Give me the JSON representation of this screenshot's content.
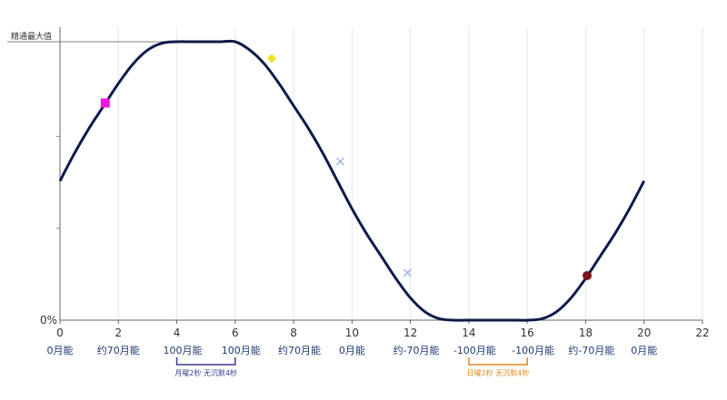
{
  "chart_data": {
    "type": "line",
    "title": "",
    "xlabel": "",
    "ylabel": "",
    "xlim": [
      0,
      22
    ],
    "ylim": [
      0,
      100
    ],
    "x_ticks": [
      0,
      2,
      4,
      6,
      8,
      10,
      12,
      14,
      16,
      18,
      20,
      22
    ],
    "y_tick_labels": {
      "top": "精通最大值",
      "bottom": "0%"
    },
    "grid": "vertical",
    "curve": {
      "color": "#0d1a4a",
      "x": [
        0,
        0.5,
        1,
        1.5,
        2,
        2.5,
        3,
        3.5,
        4,
        4.5,
        5,
        5.5,
        6,
        6.5,
        7,
        7.5,
        8,
        8.5,
        9,
        9.5,
        10,
        10.5,
        11,
        11.5,
        12,
        12.5,
        13,
        13.5,
        14,
        14.5,
        15,
        15.5,
        16,
        16.5,
        17,
        17.5,
        18,
        18.5,
        19,
        19.5,
        20
      ],
      "y": [
        50,
        60,
        69,
        77,
        85,
        92,
        97,
        99.5,
        100,
        100,
        100,
        100,
        100,
        97,
        92,
        85,
        77,
        69,
        60,
        50,
        40,
        31,
        23,
        15,
        8,
        3,
        0.5,
        0,
        0,
        0,
        0,
        0,
        0,
        0.5,
        3,
        8,
        15,
        23,
        31,
        40,
        50
      ]
    },
    "markers": [
      {
        "shape": "square",
        "x": 1.55,
        "y": 78,
        "color": "#e81ad9"
      },
      {
        "shape": "diamond",
        "x": 7.25,
        "y": 94,
        "color": "#f0e020"
      },
      {
        "shape": "cross",
        "x": 9.6,
        "y": 57,
        "color": "#9fb6e8"
      },
      {
        "shape": "cross",
        "x": 11.9,
        "y": 17,
        "color": "#9fb6e8"
      },
      {
        "shape": "circle",
        "x": 18.05,
        "y": 16,
        "color": "#7a1418"
      }
    ],
    "energy_labels": [
      {
        "x": 0,
        "text": "0月能"
      },
      {
        "x": 2,
        "text": "约70月能"
      },
      {
        "x": 4.2,
        "text": "100月能"
      },
      {
        "x": 6.2,
        "text": "100月能"
      },
      {
        "x": 8.2,
        "text": "约70月能"
      },
      {
        "x": 10,
        "text": "0月能"
      },
      {
        "x": 12.2,
        "text": "约-70月能"
      },
      {
        "x": 14.2,
        "text": "-100月能"
      },
      {
        "x": 16.2,
        "text": "-100月能"
      },
      {
        "x": 18.2,
        "text": "约-70月能"
      },
      {
        "x": 20,
        "text": "0月能"
      }
    ],
    "brackets": [
      {
        "x_start": 4,
        "x_end": 6,
        "text": "月曜2秒 无沉默4秒",
        "color": "#3a3f8f"
      },
      {
        "x_start": 14,
        "x_end": 16,
        "text": "日曜2秒 无沉默4秒",
        "color": "#e08a1e"
      }
    ]
  }
}
